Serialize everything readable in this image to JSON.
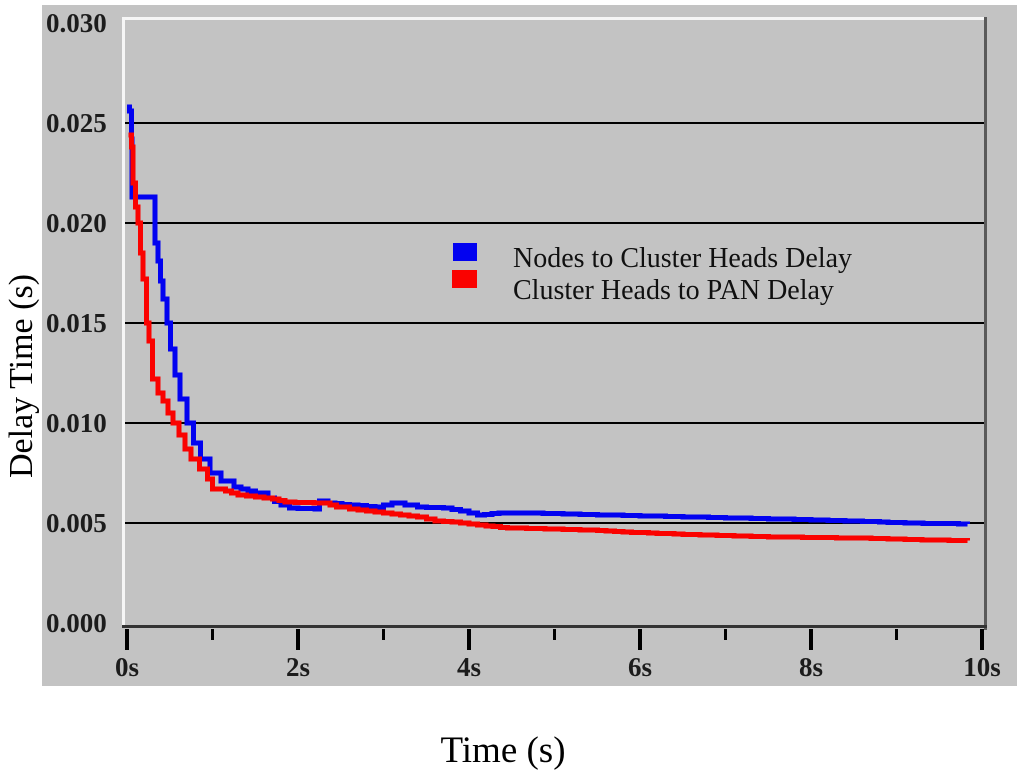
{
  "colors": {
    "panel_bg": "#c3c3c3",
    "grid": "#000000",
    "border_light": "#f6f6f6",
    "border_dark_right": "#5a5a5a",
    "border_dark_bottom": "#333333",
    "tick": "#000000",
    "series_blue": "#0202f0",
    "series_red": "#fa0200"
  },
  "chart_data": {
    "type": "line",
    "title": "",
    "xlabel": "Time (s)",
    "ylabel": "Delay Time (s)",
    "xlim": [
      0,
      10
    ],
    "ylim": [
      0,
      0.03
    ],
    "grid": "horizontal-only",
    "grid_values": [
      0.005,
      0.01,
      0.015,
      0.02,
      0.025
    ],
    "legend_position": "upper-center-inside",
    "x_ticks": [
      {
        "t": 0,
        "label": "0s"
      },
      {
        "t": 1,
        "label": ""
      },
      {
        "t": 2,
        "label": "2s"
      },
      {
        "t": 3,
        "label": ""
      },
      {
        "t": 4,
        "label": "4s"
      },
      {
        "t": 5,
        "label": ""
      },
      {
        "t": 6,
        "label": "6s"
      },
      {
        "t": 7,
        "label": ""
      },
      {
        "t": 8,
        "label": "8s"
      },
      {
        "t": 9,
        "label": ""
      },
      {
        "t": 10,
        "label": "10s"
      }
    ],
    "y_ticks": [
      {
        "v": 0.0,
        "label": "0.000"
      },
      {
        "v": 0.005,
        "label": "0.005"
      },
      {
        "v": 0.01,
        "label": "0.010"
      },
      {
        "v": 0.015,
        "label": "0.015"
      },
      {
        "v": 0.02,
        "label": "0.020"
      },
      {
        "v": 0.025,
        "label": "0.025"
      },
      {
        "v": 0.03,
        "label": "0.030"
      }
    ],
    "series": [
      {
        "name": "Nodes to Cluster Heads Delay",
        "color": "#0202f0",
        "points": [
          [
            0.0,
            0.0258
          ],
          [
            0.03,
            0.0256
          ],
          [
            0.05,
            0.0242
          ],
          [
            0.06,
            0.0213
          ],
          [
            0.3,
            0.0213
          ],
          [
            0.33,
            0.019
          ],
          [
            0.36,
            0.0181
          ],
          [
            0.39,
            0.0171
          ],
          [
            0.42,
            0.0162
          ],
          [
            0.47,
            0.015
          ],
          [
            0.51,
            0.0137
          ],
          [
            0.56,
            0.0124
          ],
          [
            0.62,
            0.0112
          ],
          [
            0.7,
            0.01
          ],
          [
            0.78,
            0.009
          ],
          [
            0.86,
            0.0082
          ],
          [
            0.97,
            0.0075
          ],
          [
            1.1,
            0.0071
          ],
          [
            1.25,
            0.0068
          ],
          [
            1.5,
            0.0065
          ],
          [
            1.65,
            0.00625
          ],
          [
            1.8,
            0.0059
          ],
          [
            1.9,
            0.00575
          ],
          [
            2.2,
            0.0057
          ],
          [
            2.25,
            0.0061
          ],
          [
            2.35,
            0.006
          ],
          [
            2.6,
            0.0059
          ],
          [
            2.9,
            0.0058
          ],
          [
            3.1,
            0.006
          ],
          [
            3.25,
            0.0059
          ],
          [
            3.4,
            0.0058
          ],
          [
            3.7,
            0.00575
          ],
          [
            3.9,
            0.0056
          ],
          [
            4.1,
            0.0054
          ],
          [
            4.35,
            0.0055
          ],
          [
            4.75,
            0.0055
          ],
          [
            5.1,
            0.00545
          ],
          [
            5.6,
            0.0054
          ],
          [
            6.1,
            0.00535
          ],
          [
            6.6,
            0.0053
          ],
          [
            7.1,
            0.00525
          ],
          [
            7.6,
            0.0052
          ],
          [
            8.1,
            0.00515
          ],
          [
            8.5,
            0.0051
          ],
          [
            8.8,
            0.00505
          ],
          [
            9.1,
            0.005
          ],
          [
            9.83,
            0.00495
          ]
        ]
      },
      {
        "name": "Cluster Heads to PAN Delay",
        "color": "#fa0200",
        "points": [
          [
            0.02,
            0.0244
          ],
          [
            0.05,
            0.0238
          ],
          [
            0.07,
            0.022
          ],
          [
            0.1,
            0.0208
          ],
          [
            0.13,
            0.02
          ],
          [
            0.16,
            0.0185
          ],
          [
            0.19,
            0.0172
          ],
          [
            0.23,
            0.015
          ],
          [
            0.26,
            0.0141
          ],
          [
            0.3,
            0.0122
          ],
          [
            0.36,
            0.0115
          ],
          [
            0.42,
            0.0111
          ],
          [
            0.48,
            0.0105
          ],
          [
            0.54,
            0.01
          ],
          [
            0.61,
            0.0094
          ],
          [
            0.68,
            0.0087
          ],
          [
            0.75,
            0.0082
          ],
          [
            0.85,
            0.0077
          ],
          [
            0.94,
            0.0072
          ],
          [
            1.0,
            0.0067
          ],
          [
            1.15,
            0.0066
          ],
          [
            1.3,
            0.0064
          ],
          [
            1.5,
            0.0063
          ],
          [
            1.7,
            0.0062
          ],
          [
            1.85,
            0.00605
          ],
          [
            2.3,
            0.006
          ],
          [
            2.45,
            0.0058
          ],
          [
            2.6,
            0.0057
          ],
          [
            2.8,
            0.0056
          ],
          [
            3.0,
            0.0055
          ],
          [
            3.2,
            0.0054
          ],
          [
            3.4,
            0.0053
          ],
          [
            3.6,
            0.0051
          ],
          [
            3.8,
            0.00505
          ],
          [
            4.0,
            0.00495
          ],
          [
            4.2,
            0.00485
          ],
          [
            4.45,
            0.00475
          ],
          [
            5.0,
            0.0047
          ],
          [
            5.4,
            0.00465
          ],
          [
            5.8,
            0.00455
          ],
          [
            6.1,
            0.0045
          ],
          [
            6.7,
            0.0044
          ],
          [
            7.6,
            0.0043
          ],
          [
            8.5,
            0.00425
          ],
          [
            9.4,
            0.00415
          ],
          [
            9.83,
            0.00412
          ]
        ]
      }
    ]
  }
}
